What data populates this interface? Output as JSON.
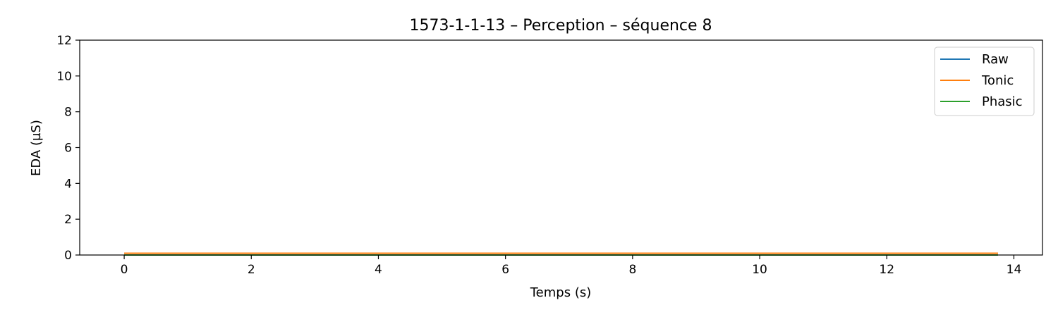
{
  "chart_data": {
    "type": "line",
    "title": "1573-1-1-13 – Perception – séquence 8",
    "xlabel": "Temps (s)",
    "ylabel": "EDA (µS)",
    "xlim": [
      -0.7,
      14.45
    ],
    "ylim": [
      0,
      12
    ],
    "xticks": [
      0,
      2,
      4,
      6,
      8,
      10,
      12,
      14
    ],
    "yticks": [
      0,
      2,
      4,
      6,
      8,
      10,
      12
    ],
    "grid": false,
    "legend_position": "top-right",
    "series": [
      {
        "name": "Raw",
        "color": "#1f77b4",
        "x": [
          0,
          13.75
        ],
        "y": [
          0.1,
          0.1
        ]
      },
      {
        "name": "Tonic",
        "color": "#ff7f0e",
        "x": [
          0,
          13.75
        ],
        "y": [
          0.1,
          0.1
        ]
      },
      {
        "name": "Phasic",
        "color": "#2ca02c",
        "x": [
          0,
          13.75
        ],
        "y": [
          0.0,
          0.0
        ]
      }
    ]
  }
}
